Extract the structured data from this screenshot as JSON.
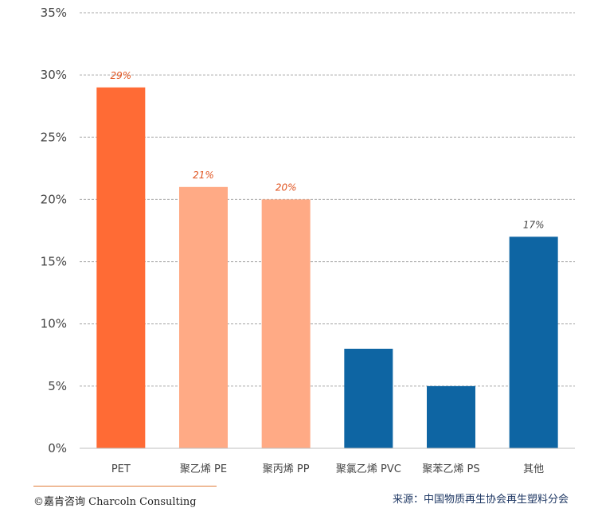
{
  "chart_data": {
    "type": "bar",
    "title": "",
    "xlabel": "",
    "ylabel": "",
    "categories": [
      "PET",
      "聚乙烯 PE",
      "聚丙烯 PP",
      "聚氯乙烯 PVC",
      "聚苯乙烯 PS",
      "其他"
    ],
    "values": [
      29,
      21,
      20,
      8,
      5,
      17
    ],
    "value_unit": "%",
    "bar_colors": [
      "#ff6b35",
      "#ffaa85",
      "#ffaa85",
      "#0e65a3",
      "#0e65a3",
      "#0e65a3"
    ],
    "data_labels": [
      "29%",
      "21%",
      "20%",
      "",
      "",
      "17%"
    ],
    "data_label_colors": [
      "#e0531f",
      "#e0531f",
      "#e0531f",
      "",
      "",
      "#444444"
    ],
    "ylim": [
      0,
      35
    ],
    "yticks": [
      0,
      5,
      10,
      15,
      20,
      25,
      30,
      35
    ],
    "ytick_labels": [
      "0%",
      "5%",
      "10%",
      "15%",
      "20%",
      "25%",
      "30%",
      "35%"
    ],
    "grid": true,
    "legend": "none"
  },
  "footer": {
    "copyright": "©嘉肯咨询  Charcoln Consulting",
    "source": "来源：中国物质再生协会再生塑料分会"
  },
  "colors": {
    "gridline": "#aaaaaa",
    "axis": "#bfbfbf",
    "tick_text": "#444444",
    "rule": "#e07b39",
    "source_text": "#1f3864"
  }
}
